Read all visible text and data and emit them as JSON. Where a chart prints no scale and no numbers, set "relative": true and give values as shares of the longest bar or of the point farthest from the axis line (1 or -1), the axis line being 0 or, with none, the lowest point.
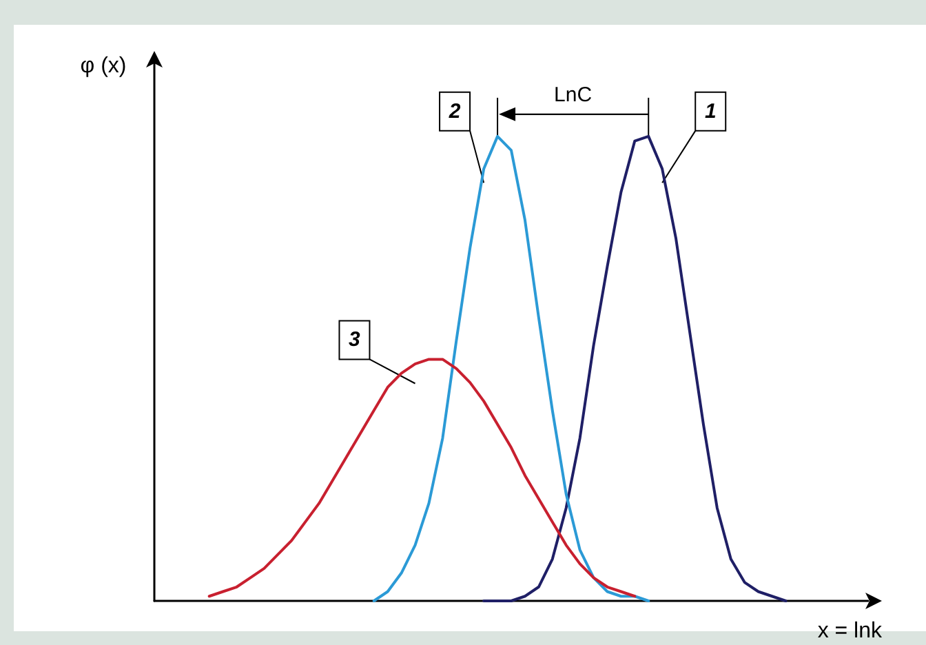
{
  "chart_data": {
    "type": "line",
    "relative": true,
    "xlabel": "x = lnk",
    "ylabel": "φ (x)",
    "annotations": [
      "LnC"
    ],
    "categories": [
      null,
      null,
      null,
      null,
      null,
      null,
      null,
      null,
      null,
      null,
      null,
      null,
      null,
      null,
      null,
      null,
      null,
      null,
      null,
      null,
      null,
      null,
      null,
      null,
      null,
      null,
      null,
      null,
      null,
      null,
      null,
      null,
      null,
      null,
      null,
      null,
      null,
      null,
      null,
      null,
      null,
      null,
      null,
      null,
      null,
      null,
      null,
      null,
      null,
      null,
      null,
      null,
      null
    ],
    "series": [
      {
        "name": "1",
        "color": "#1f1f66",
        "values": [
          null,
          null,
          null,
          null,
          null,
          null,
          null,
          null,
          null,
          null,
          null,
          null,
          null,
          null,
          null,
          null,
          null,
          null,
          null,
          null,
          null,
          null,
          null,
          null,
          0,
          0,
          0,
          0.01,
          0.03,
          0.09,
          0.2,
          0.35,
          0.55,
          0.72,
          0.88,
          0.99,
          1,
          0.93,
          0.78,
          0.58,
          0.38,
          0.2,
          0.09,
          0.04,
          0.02,
          0.01,
          0,
          null,
          null,
          null,
          null,
          null,
          null
        ]
      },
      {
        "name": "2",
        "color": "#2b9ad6",
        "values": [
          null,
          null,
          null,
          null,
          null,
          null,
          null,
          null,
          null,
          null,
          null,
          null,
          null,
          null,
          null,
          null,
          0,
          0.02,
          0.06,
          0.12,
          0.21,
          0.35,
          0.56,
          0.76,
          0.93,
          1,
          0.97,
          0.82,
          0.61,
          0.41,
          0.23,
          0.11,
          0.05,
          0.02,
          0.01,
          0.01,
          0,
          null,
          null,
          null,
          null,
          null,
          null,
          null,
          null,
          null,
          null,
          null,
          null,
          null,
          null,
          null,
          null
        ]
      },
      {
        "name": "3",
        "color": "#c8202f",
        "values": [
          null,
          null,
          null,
          null,
          0.01,
          0.02,
          0.03,
          0.05,
          0.07,
          0.1,
          0.13,
          0.17,
          0.21,
          0.26,
          0.31,
          0.36,
          0.41,
          0.46,
          0.49,
          0.51,
          0.52,
          0.52,
          0.5,
          0.47,
          0.43,
          0.38,
          0.33,
          0.27,
          0.22,
          0.17,
          0.12,
          0.08,
          0.05,
          0.03,
          0.02,
          0.01,
          null,
          null,
          null,
          null,
          null,
          null,
          null,
          null,
          null,
          null,
          null,
          null,
          null,
          null,
          null,
          null,
          null
        ]
      }
    ]
  }
}
